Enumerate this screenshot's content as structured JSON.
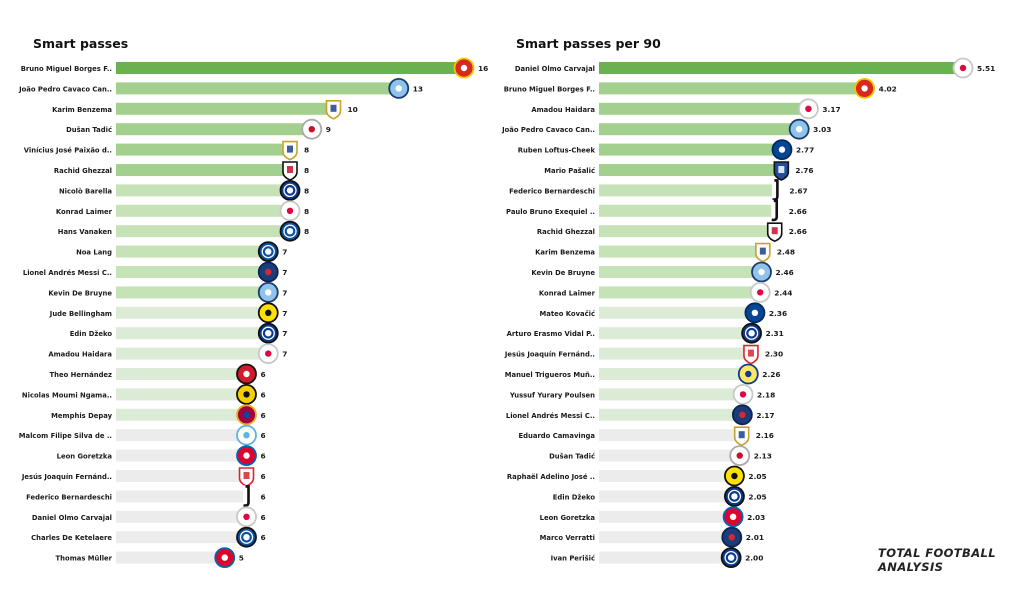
{
  "chart_data": [
    {
      "type": "bar",
      "orientation": "horizontal",
      "title": "Smart passes",
      "xlabel": "",
      "ylabel": "",
      "xlim": [
        0,
        16
      ],
      "grid": false,
      "legend": "none",
      "bar_colors": [
        "#6ab150",
        "#a3cf8f",
        "#c6e3b8",
        "#dcebd5",
        "#ececec"
      ],
      "categories": [
        "Bruno Miguel Borges F..",
        "João Pedro Cavaco Can..",
        "Karim Benzema",
        "Dušan Tadić",
        "Vinícius José Paixão d..",
        "Rachid Ghezzal",
        "Nicolò Barella",
        "Konrad Laimer",
        "Hans Vanaken",
        "Noa Lang",
        "Lionel Andrés Messi C..",
        "Kevin De Bruyne",
        "Jude Bellingham",
        "Edin Džeko",
        "Amadou Haidara",
        "Theo Hernández",
        "Nicolas Moumi Ngama..",
        "Memphis Depay",
        "Malcom Filipe Silva de ..",
        "Leon  Goretzka",
        "Jesús Joaquín Fernánd..",
        "Federico Bernardeschi",
        "Daniel Olmo Carvajal",
        "Charles De Ketelaere",
        "Thomas Müller"
      ],
      "values": [
        16,
        13,
        10,
        9,
        8,
        8,
        8,
        8,
        8,
        7,
        7,
        7,
        7,
        7,
        7,
        6,
        6,
        6,
        6,
        6,
        6,
        6,
        6,
        6,
        5
      ],
      "value_labels": [
        "16",
        "13",
        "10",
        "9",
        "8",
        "8",
        "8",
        "8",
        "8",
        "7",
        "7",
        "7",
        "7",
        "7",
        "7",
        "6",
        "6",
        "6",
        "6",
        "6",
        "6",
        "6",
        "6",
        "6",
        "5"
      ],
      "club_icons": [
        "man-united-crest-icon",
        "man-city-crest-icon",
        "real-madrid-crest-icon",
        "ajax-crest-icon",
        "real-madrid-crest-icon",
        "besiktas-crest-icon",
        "inter-crest-icon",
        "rb-leipzig-crest-icon",
        "club-brugge-crest-icon",
        "club-brugge-crest-icon",
        "psg-crest-icon",
        "man-city-crest-icon",
        "dortmund-crest-icon",
        "inter-crest-icon",
        "rb-leipzig-crest-icon",
        "ac-milan-crest-icon",
        "young-boys-crest-icon",
        "barcelona-crest-icon",
        "zenit-crest-icon",
        "bayern-crest-icon",
        "sevilla-crest-icon",
        "juventus-crest-icon",
        "rb-leipzig-crest-icon",
        "club-brugge-crest-icon",
        "bayern-crest-icon"
      ]
    },
    {
      "type": "bar",
      "orientation": "horizontal",
      "title": "Smart passes per 90",
      "xlabel": "",
      "ylabel": "",
      "xlim": [
        0,
        5.51
      ],
      "grid": false,
      "legend": "none",
      "bar_colors": [
        "#6ab150",
        "#a3cf8f",
        "#c6e3b8",
        "#dcebd5",
        "#ececec"
      ],
      "categories": [
        "Daniel Olmo Carvajal",
        "Bruno Miguel Borges F..",
        "Amadou Haidara",
        "João Pedro Cavaco Can..",
        "Ruben Loftus-Cheek",
        "Mario Pašalić",
        "Federico Bernardeschi",
        "Paulo Bruno Exequiel ..",
        "Rachid Ghezzal",
        "Karim Benzema",
        "Kevin De Bruyne",
        "Konrad Laimer",
        "Mateo Kovačić",
        "Arturo Erasmo Vidal P..",
        "Jesús Joaquín Fernánd..",
        "Manuel Trigueros Muñ..",
        "Yussuf Yurary Poulsen",
        "Lionel Andrés Messi C..",
        "Eduardo Camavinga",
        "Dušan Tadić",
        "Raphaël Adelino José ..",
        "Edin Džeko",
        "Leon  Goretzka",
        "Marco Verratti",
        "Ivan Perišić"
      ],
      "values": [
        5.51,
        4.02,
        3.17,
        3.03,
        2.77,
        2.76,
        2.67,
        2.66,
        2.66,
        2.48,
        2.46,
        2.44,
        2.36,
        2.31,
        2.3,
        2.26,
        2.18,
        2.17,
        2.16,
        2.13,
        2.05,
        2.05,
        2.03,
        2.01,
        2.0
      ],
      "value_labels": [
        "5.51",
        "4.02",
        "3.17",
        "3.03",
        "2.77",
        "2.76",
        "2.67",
        "2.66",
        "2.66",
        "2.48",
        "2.46",
        "2.44",
        "2.36",
        "2.31",
        "2.30",
        "2.26",
        "2.18",
        "2.17",
        "2.16",
        "2.13",
        "2.05",
        "2.05",
        "2.03",
        "2.01",
        "2.00"
      ],
      "club_icons": [
        "rb-leipzig-crest-icon",
        "man-united-crest-icon",
        "rb-leipzig-crest-icon",
        "man-city-crest-icon",
        "chelsea-crest-icon",
        "atalanta-crest-icon",
        "juventus-crest-icon",
        "juventus-crest-icon",
        "besiktas-crest-icon",
        "real-madrid-crest-icon",
        "man-city-crest-icon",
        "rb-leipzig-crest-icon",
        "chelsea-crest-icon",
        "inter-crest-icon",
        "sevilla-crest-icon",
        "villarreal-crest-icon",
        "rb-leipzig-crest-icon",
        "psg-crest-icon",
        "real-madrid-crest-icon",
        "ajax-crest-icon",
        "dortmund-crest-icon",
        "inter-crest-icon",
        "bayern-crest-icon",
        "psg-crest-icon",
        "inter-crest-icon"
      ]
    }
  ],
  "watermark": "TOTAL FOOTBALL ANALYSIS"
}
